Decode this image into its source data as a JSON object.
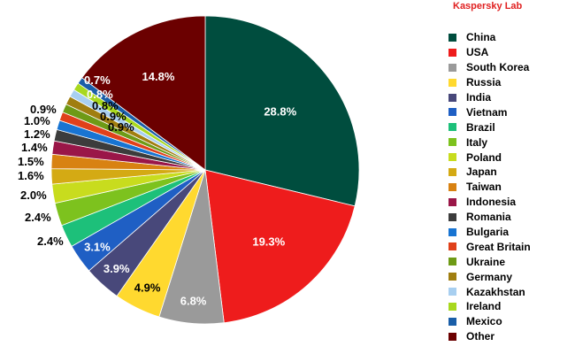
{
  "brand": "Kaspersky Lab",
  "chart_data": {
    "type": "pie",
    "title": "",
    "legend_position": "right",
    "slices": [
      {
        "name": "China",
        "value": 28.8,
        "label": "28.8%",
        "color": "#004d3e"
      },
      {
        "name": "USA",
        "value": 19.3,
        "label": "19.3%",
        "color": "#ee1c1c"
      },
      {
        "name": "South Korea",
        "value": 6.8,
        "label": "6.8%",
        "color": "#9a9a9a"
      },
      {
        "name": "Russia",
        "value": 4.9,
        "label": "4.9%",
        "color": "#ffd92f"
      },
      {
        "name": "India",
        "value": 3.9,
        "label": "3.9%",
        "color": "#48487a"
      },
      {
        "name": "Vietnam",
        "value": 3.1,
        "label": "3.1%",
        "color": "#1f5fc4"
      },
      {
        "name": "Brazil",
        "value": 2.4,
        "label": "2.4%",
        "color": "#1dc07a"
      },
      {
        "name": "Italy",
        "value": 2.4,
        "label": "2.4%",
        "color": "#7dc21e"
      },
      {
        "name": "Poland",
        "value": 2.0,
        "label": "2.0%",
        "color": "#c8dc1e"
      },
      {
        "name": "Japan",
        "value": 1.6,
        "label": "1.6%",
        "color": "#d4aa14"
      },
      {
        "name": "Taiwan",
        "value": 1.5,
        "label": "1.5%",
        "color": "#d88212"
      },
      {
        "name": "Indonesia",
        "value": 1.4,
        "label": "1.4%",
        "color": "#9a1648"
      },
      {
        "name": "Romania",
        "value": 1.2,
        "label": "1.2%",
        "color": "#3c3c3c"
      },
      {
        "name": "Bulgaria",
        "value": 1.0,
        "label": "1.0%",
        "color": "#1874d2"
      },
      {
        "name": "Great Britain",
        "value": 0.9,
        "label": "0.9%",
        "color": "#e0401a"
      },
      {
        "name": "Ukraine",
        "value": 0.9,
        "label": "0.9%",
        "color": "#6e9a16"
      },
      {
        "name": "Germany",
        "value": 0.9,
        "label": "0.9%",
        "color": "#a07e10"
      },
      {
        "name": "Kazakhstan",
        "value": 0.8,
        "label": "0.8%",
        "color": "#a8cff0"
      },
      {
        "name": "Ireland",
        "value": 0.8,
        "label": "0.8%",
        "color": "#a8d81e"
      },
      {
        "name": "Mexico",
        "value": 0.7,
        "label": "0.7%",
        "color": "#1a5ea8"
      },
      {
        "name": "Other",
        "value": 14.8,
        "label": "14.8%",
        "color": "#6b0000"
      }
    ]
  }
}
